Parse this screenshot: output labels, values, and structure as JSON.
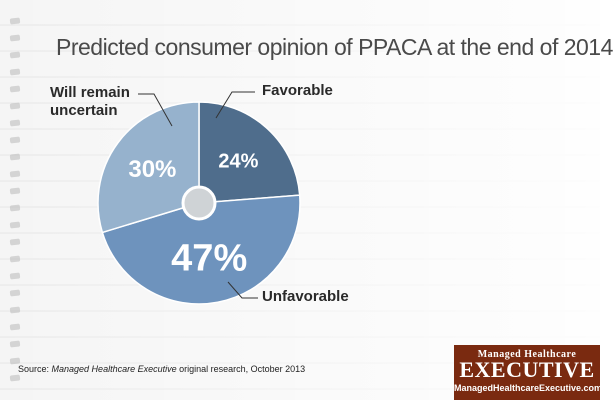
{
  "title": "Predicted consumer opinion of PPACA at the end of 2014",
  "labels": {
    "favorable": "Favorable",
    "uncertain_line1": "Will remain",
    "uncertain_line2": "uncertain",
    "unfavorable": "Unfavorable"
  },
  "source": {
    "prefix": "Source: ",
    "publication": "Managed Healthcare Executive",
    "suffix": " original research, October 2013"
  },
  "logo": {
    "top": "Managed Healthcare",
    "main": "EXECUTIVE",
    "url": "ManagedHealthcareExecutive.com"
  },
  "colors": {
    "favorable": "#4f6d8c",
    "unfavorable": "#6e93bd",
    "uncertain": "#96b2cd",
    "center": "#cfd3d6",
    "logo_bg": "#7a2a10"
  },
  "chart_data": {
    "type": "pie",
    "title": "Predicted consumer opinion of PPACA at the end of 2014",
    "slices": [
      {
        "label": "Favorable",
        "value": 24,
        "display": "24%"
      },
      {
        "label": "Unfavorable",
        "value": 47,
        "display": "47%"
      },
      {
        "label": "Will remain uncertain",
        "value": 30,
        "display": "30%"
      }
    ],
    "start_angle_deg": 0,
    "direction": "clockwise",
    "donut_hole": true
  }
}
